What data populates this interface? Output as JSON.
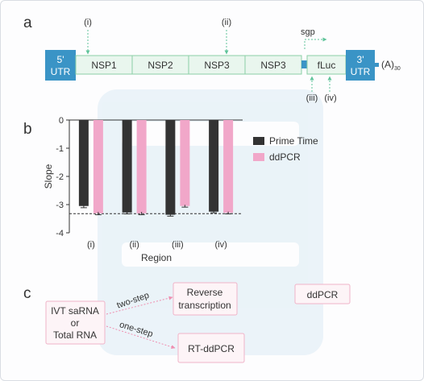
{
  "panel_a": {
    "label": "a",
    "utr5": [
      "5'",
      "UTR"
    ],
    "utr3": [
      "3'",
      "UTR"
    ],
    "segments": [
      "NSP1",
      "NSP2",
      "NSP3",
      "NSP3",
      "fLuc"
    ],
    "sgp": "sgp",
    "poly_a": "(A)",
    "poly_a_sub": "30",
    "primer_sites": [
      "(i)",
      "(ii)",
      "(iii)",
      "(iv)"
    ],
    "colors": {
      "utr": "#3a94c6",
      "segment_fill": "#e9f6ee",
      "segment_stroke": "#8ccfa6",
      "arrow": "#5fc49a"
    }
  },
  "panel_b": {
    "label": "b",
    "ylabel": "Slope",
    "xlabel": "Region"
  },
  "chart_data": {
    "type": "bar",
    "categories": [
      "(i)",
      "(ii)",
      "(iii)",
      "(iv)"
    ],
    "series": [
      {
        "name": "Prime Time",
        "values": [
          -3.05,
          -3.28,
          -3.36,
          -3.25
        ],
        "errors": [
          0.06,
          0.05,
          0.05,
          0.04
        ],
        "color": "#333333"
      },
      {
        "name": "ddPCR",
        "values": [
          -3.31,
          -3.31,
          -3.05,
          -3.29
        ],
        "errors": [
          0.05,
          0.05,
          0.04,
          0.04
        ],
        "color": "#f1a7c9"
      }
    ],
    "ylim": [
      -4,
      0
    ],
    "yticks": [
      "0",
      "-1",
      "-2",
      "-3",
      "-4"
    ],
    "reference_line": -3.32,
    "legend_position": "right"
  },
  "panel_c": {
    "label": "c",
    "input_lines": [
      "IVT saRNA",
      "or",
      "Total RNA"
    ],
    "two_step": "two-step",
    "one_step": "one-step",
    "reverse_lines": [
      "Reverse",
      "transcription"
    ],
    "rtddpcr": "RT-ddPCR",
    "ddpcr": "ddPCR",
    "colors": {
      "box_stroke": "#f0b3c8",
      "box_fill": "#fdf4f7",
      "arrow": "#ef8fb0"
    }
  }
}
